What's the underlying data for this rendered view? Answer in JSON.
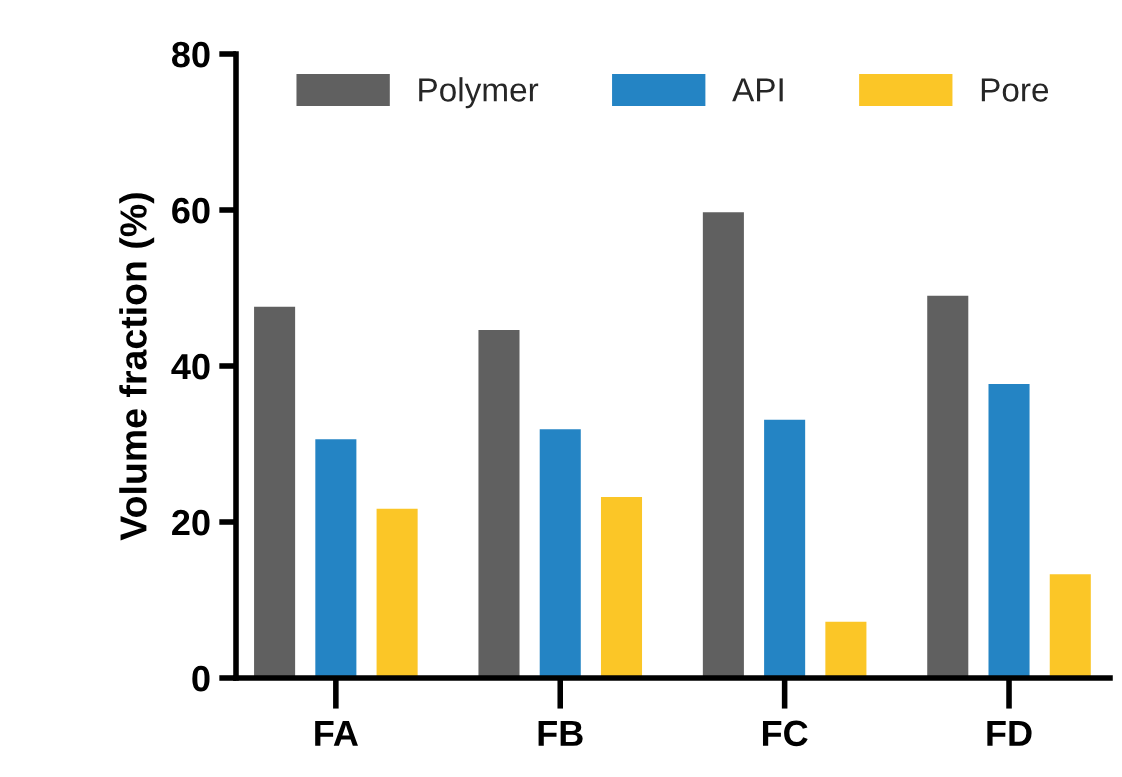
{
  "chart_data": {
    "type": "bar",
    "ylabel": "Volume fraction (%)",
    "categories": [
      "FA",
      "FB",
      "FC",
      "FD"
    ],
    "series": [
      {
        "name": "Polymer",
        "color": "#606060",
        "values": [
          47.6,
          44.6,
          59.7,
          49.0
        ]
      },
      {
        "name": "API",
        "color": "#2484c4",
        "values": [
          30.6,
          31.9,
          33.1,
          37.7
        ]
      },
      {
        "name": "Pore",
        "color": "#fbc627",
        "values": [
          21.7,
          23.2,
          7.2,
          13.3
        ]
      }
    ],
    "ylim": [
      0,
      80
    ],
    "yticks": [
      0,
      20,
      40,
      60,
      80
    ],
    "grid": false,
    "legend": "top"
  }
}
